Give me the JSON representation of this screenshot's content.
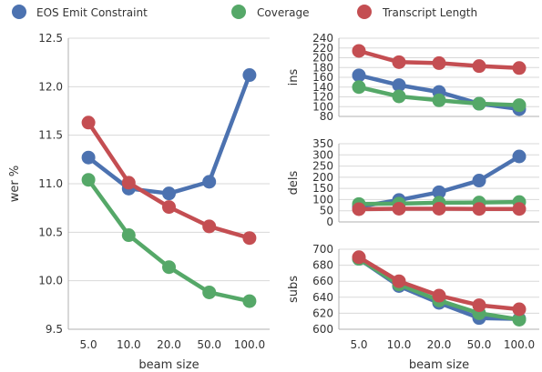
{
  "legend": [
    {
      "name": "EOS Emit Constraint",
      "color": "#4C72B0"
    },
    {
      "name": "Coverage",
      "color": "#55A868"
    },
    {
      "name": "Transcript Length",
      "color": "#C44E52"
    }
  ],
  "chart_data": [
    {
      "type": "line",
      "categories": [
        "5.0",
        "10.0",
        "20.0",
        "50.0",
        "100.0"
      ],
      "xlabel": "beam size",
      "ylabel": "wer %",
      "ylim": [
        9.5,
        12.5
      ],
      "yticks": [
        "9.5",
        "10.0",
        "10.5",
        "11.0",
        "11.5",
        "12.0",
        "12.5"
      ],
      "grid": "horizontal",
      "series": [
        {
          "name": "EOS Emit Constraint",
          "color": "#4C72B0",
          "values": [
            11.27,
            10.95,
            10.9,
            11.02,
            12.12
          ]
        },
        {
          "name": "Coverage",
          "color": "#55A868",
          "values": [
            11.04,
            10.47,
            10.14,
            9.88,
            9.79
          ]
        },
        {
          "name": "Transcript Length",
          "color": "#C44E52",
          "values": [
            11.63,
            11.01,
            10.76,
            10.56,
            10.44
          ]
        }
      ]
    },
    {
      "type": "line",
      "categories": [
        "5.0",
        "10.0",
        "20.0",
        "50.0",
        "100.0"
      ],
      "xlabel": "",
      "ylabel": "ins",
      "ylim": [
        80,
        240
      ],
      "yticks": [
        "80",
        "100",
        "120",
        "140",
        "160",
        "180",
        "200",
        "220",
        "240"
      ],
      "grid": "horizontal",
      "series": [
        {
          "name": "EOS Emit Constraint",
          "color": "#4C72B0",
          "values": [
            164,
            144,
            130,
            106,
            95
          ]
        },
        {
          "name": "Coverage",
          "color": "#55A868",
          "values": [
            140,
            121,
            113,
            106,
            103
          ]
        },
        {
          "name": "Transcript Length",
          "color": "#C44E52",
          "values": [
            214,
            191,
            189,
            183,
            179
          ]
        }
      ]
    },
    {
      "type": "line",
      "categories": [
        "5.0",
        "10.0",
        "20.0",
        "50.0",
        "100.0"
      ],
      "xlabel": "",
      "ylabel": "dels",
      "ylim": [
        0,
        350
      ],
      "yticks": [
        "0",
        "50",
        "100",
        "150",
        "200",
        "250",
        "300",
        "350"
      ],
      "grid": "horizontal",
      "series": [
        {
          "name": "EOS Emit Constraint",
          "color": "#4C72B0",
          "values": [
            68,
            98,
            133,
            185,
            293
          ]
        },
        {
          "name": "Coverage",
          "color": "#55A868",
          "values": [
            80,
            82,
            86,
            87,
            89
          ]
        },
        {
          "name": "Transcript Length",
          "color": "#C44E52",
          "values": [
            57,
            59,
            59,
            58,
            58
          ]
        }
      ]
    },
    {
      "type": "line",
      "categories": [
        "5.0",
        "10.0",
        "20.0",
        "50.0",
        "100.0"
      ],
      "xlabel": "beam size",
      "ylabel": "subs",
      "ylim": [
        600,
        700
      ],
      "yticks": [
        "600",
        "620",
        "640",
        "660",
        "680",
        "700"
      ],
      "grid": "horizontal",
      "series": [
        {
          "name": "EOS Emit Constraint",
          "color": "#4C72B0",
          "values": [
            688,
            654,
            633,
            614,
            613
          ]
        },
        {
          "name": "Coverage",
          "color": "#55A868",
          "values": [
            688,
            656,
            636,
            620,
            612
          ]
        },
        {
          "name": "Transcript Length",
          "color": "#C44E52",
          "values": [
            690,
            660,
            642,
            630,
            625
          ]
        }
      ]
    }
  ]
}
